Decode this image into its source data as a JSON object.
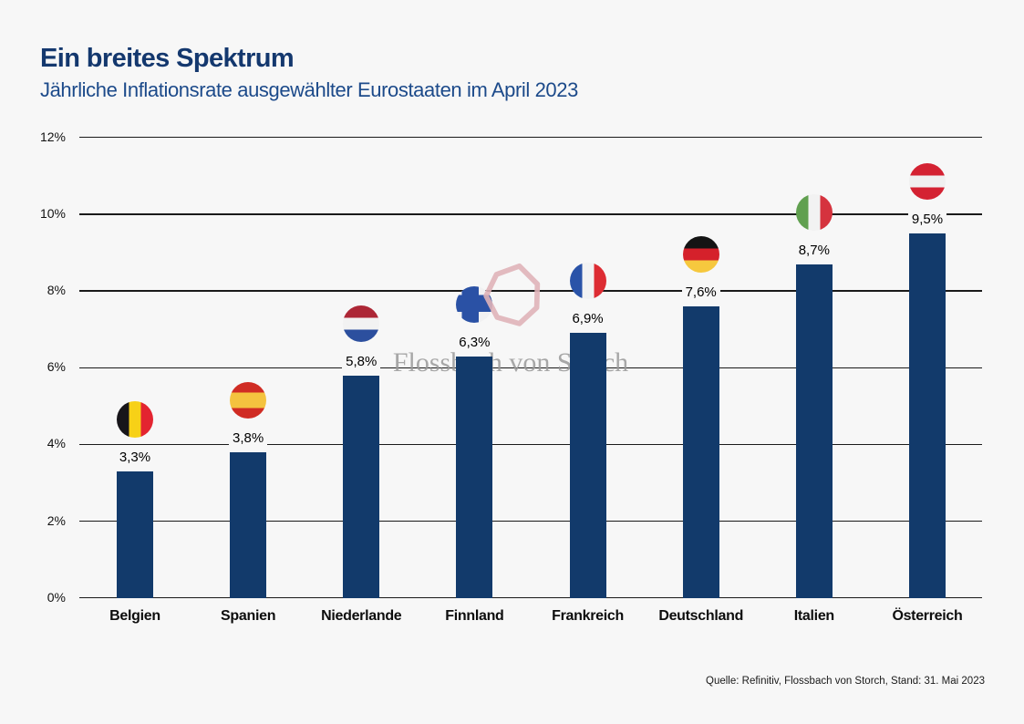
{
  "header": {
    "title": "Ein breites Spektrum",
    "subtitle": "Jährliche Inflationsrate ausgewählter Eurostaaten im April 2023"
  },
  "watermark": {
    "text": "Flossbach von Storch",
    "ring_color": "#dfb3b8"
  },
  "footer": {
    "source": "Quelle: Refinitiv, Flossbach von Storch, Stand: 31. Mai 2023"
  },
  "colors": {
    "background": "#f7f7f7",
    "bar": "#123a6b",
    "title_blue": "#14386e",
    "subtitle_blue": "#1c4a8a",
    "grid": "#1a1a1a"
  },
  "chart_data": {
    "type": "bar",
    "title": "Ein breites Spektrum",
    "subtitle": "Jährliche Inflationsrate ausgewählter Eurostaaten im April 2023",
    "categories": [
      "Belgien",
      "Spanien",
      "Niederlande",
      "Finnland",
      "Frankreich",
      "Deutschland",
      "Italien",
      "Österreich"
    ],
    "values": [
      3.3,
      3.8,
      5.8,
      6.3,
      6.9,
      7.6,
      8.7,
      9.5
    ],
    "value_labels": [
      "3,3%",
      "3,8%",
      "5,8%",
      "6,3%",
      "6,9%",
      "7,6%",
      "8,7%",
      "9,5%"
    ],
    "unit": "%",
    "xlabel": "",
    "ylabel": "",
    "ylim": [
      0,
      12
    ],
    "ytick_step": 2,
    "ytick_labels": [
      "0%",
      "2%",
      "4%",
      "6%",
      "8%",
      "10%",
      "12%"
    ],
    "grid": true,
    "legend": "none",
    "bar_color": "#123a6b",
    "flags": [
      {
        "country": "Belgien",
        "icon": "belgium-flag-icon",
        "type": "vertical",
        "colors": [
          "#17151a",
          "#f7d117",
          "#e32430"
        ]
      },
      {
        "country": "Spanien",
        "icon": "spain-flag-icon",
        "type": "horizontal",
        "colors": [
          "#d02c24",
          "#f4c33f",
          "#d02c24"
        ],
        "stops": [
          29,
          71
        ]
      },
      {
        "country": "Niederlande",
        "icon": "netherlands-flag-icon",
        "type": "horizontal",
        "colors": [
          "#ad2736",
          "#f2f2f2",
          "#2c4f9e"
        ],
        "stops": [
          34,
          66
        ]
      },
      {
        "country": "Finnland",
        "icon": "finland-flag-icon",
        "type": "nordic",
        "bg": "#f1f1f2",
        "cross": "#2a51a5"
      },
      {
        "country": "Frankreich",
        "icon": "france-flag-icon",
        "type": "vertical",
        "colors": [
          "#2a53a8",
          "#f2f2f2",
          "#dd2c33"
        ]
      },
      {
        "country": "Deutschland",
        "icon": "germany-flag-icon",
        "type": "horizontal",
        "colors": [
          "#141414",
          "#d5212b",
          "#f6c83e"
        ],
        "stops": [
          33.4,
          66.7
        ]
      },
      {
        "country": "Italien",
        "icon": "italy-flag-icon",
        "type": "vertical",
        "colors": [
          "#61a050",
          "#f2f2f2",
          "#d5333e"
        ]
      },
      {
        "country": "Österreich",
        "icon": "austria-flag-icon",
        "type": "horizontal",
        "colors": [
          "#d42232",
          "#f0f0f0",
          "#d42232"
        ],
        "stops": [
          33.4,
          66.7
        ]
      }
    ]
  }
}
